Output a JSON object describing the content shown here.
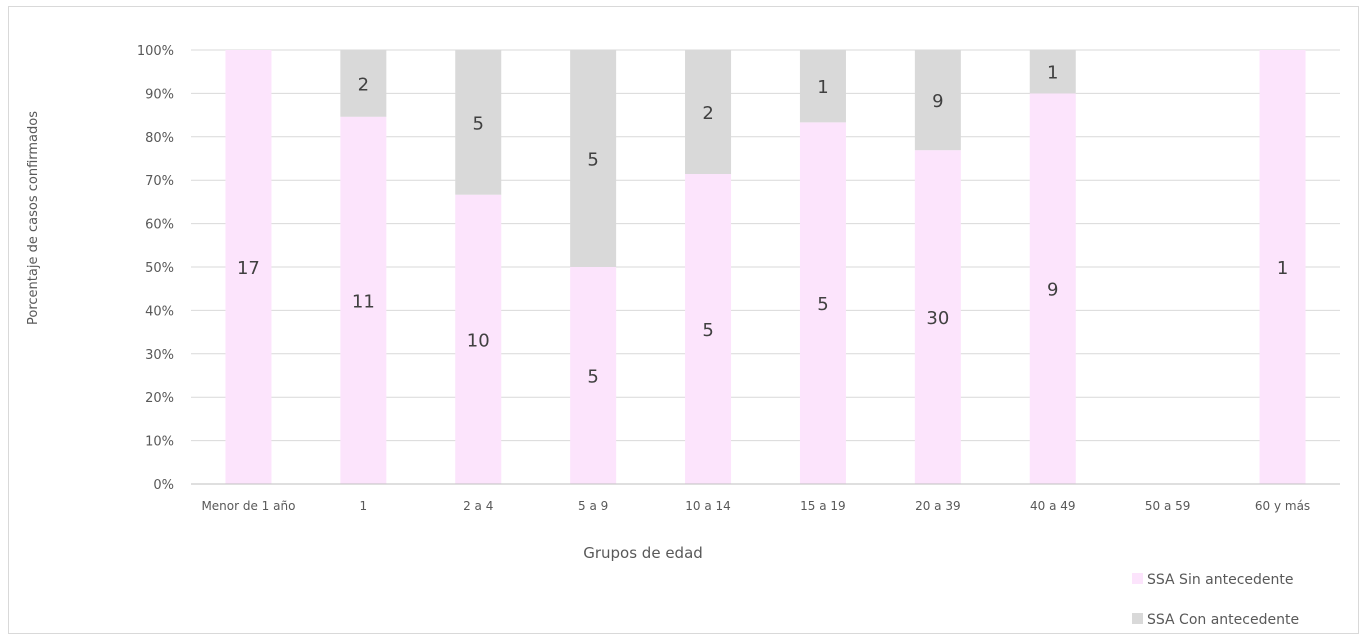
{
  "chart_data": {
    "type": "bar",
    "stacked": true,
    "normalized_percent": true,
    "xlabel": "Grupos de edad",
    "ylabel": "Porcentaje de casos confirmados",
    "ylim": [
      0,
      100
    ],
    "yticks": [
      "0%",
      "10%",
      "20%",
      "30%",
      "40%",
      "50%",
      "60%",
      "70%",
      "80%",
      "90%",
      "100%"
    ],
    "categories": [
      "Menor de 1 año",
      "1",
      "2 a 4",
      "5 a 9",
      "10 a 14",
      "15 a 19",
      "20 a 39",
      "40 a 49",
      "50 a 59",
      "60 y más"
    ],
    "series": [
      {
        "name": "SSA Sin antecedente",
        "color": "#fce4fc",
        "values": [
          17,
          11,
          10,
          5,
          5,
          5,
          30,
          9,
          0,
          1
        ]
      },
      {
        "name": "SSA Con antecedente",
        "color": "#d9d9d9",
        "values": [
          0,
          2,
          5,
          5,
          2,
          1,
          9,
          1,
          0,
          0
        ]
      }
    ],
    "grid": true,
    "legend_position": "bottom-right"
  }
}
